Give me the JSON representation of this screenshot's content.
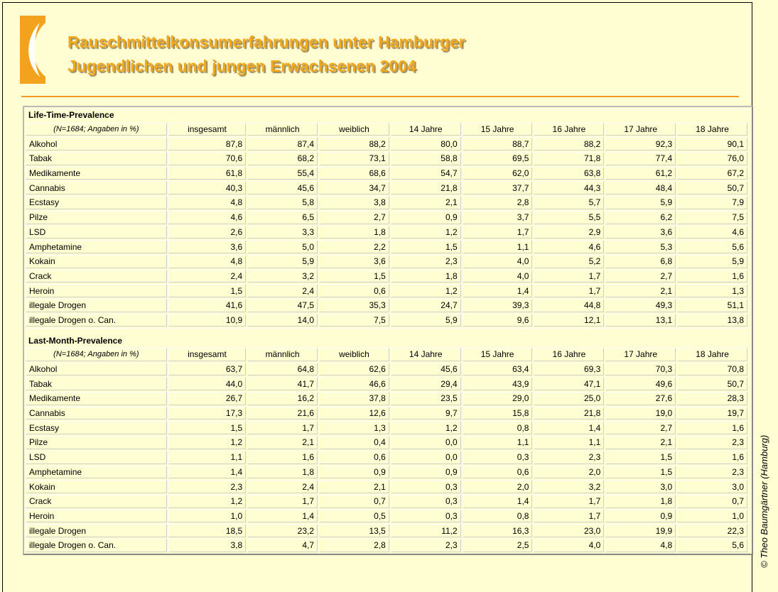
{
  "header": {
    "title_line1": "Rauschmittelkonsumerfahrungen unter Hamburger",
    "title_line2": "Jugendlichen und jungen Erwachsenen 2004"
  },
  "copyright": "© Theo Baumgärtner (Hamburg)",
  "table": {
    "sections": [
      {
        "title": "Life-Time-Prevalence",
        "note": "(N=1684; Angaben in %)",
        "columns": [
          "insgesamt",
          "männlich",
          "weiblich",
          "14 Jahre",
          "15 Jahre",
          "16 Jahre",
          "17 Jahre",
          "18 Jahre"
        ],
        "rows": [
          {
            "label": "Alkohol",
            "values": [
              "87,8",
              "87,4",
              "88,2",
              "80,0",
              "88,7",
              "88,2",
              "92,3",
              "90,1"
            ]
          },
          {
            "label": "Tabak",
            "values": [
              "70,6",
              "68,2",
              "73,1",
              "58,8",
              "69,5",
              "71,8",
              "77,4",
              "76,0"
            ]
          },
          {
            "label": "Medikamente",
            "values": [
              "61,8",
              "55,4",
              "68,6",
              "54,7",
              "62,0",
              "63,8",
              "61,2",
              "67,2"
            ]
          },
          {
            "label": "Cannabis",
            "values": [
              "40,3",
              "45,6",
              "34,7",
              "21,8",
              "37,7",
              "44,3",
              "48,4",
              "50,7"
            ]
          },
          {
            "label": "Ecstasy",
            "values": [
              "4,8",
              "5,8",
              "3,8",
              "2,1",
              "2,8",
              "5,7",
              "5,9",
              "7,9"
            ]
          },
          {
            "label": "Pilze",
            "values": [
              "4,6",
              "6,5",
              "2,7",
              "0,9",
              "3,7",
              "5,5",
              "6,2",
              "7,5"
            ]
          },
          {
            "label": "LSD",
            "values": [
              "2,6",
              "3,3",
              "1,8",
              "1,2",
              "1,7",
              "2,9",
              "3,6",
              "4,6"
            ]
          },
          {
            "label": "Amphetamine",
            "values": [
              "3,6",
              "5,0",
              "2,2",
              "1,5",
              "1,1",
              "4,6",
              "5,3",
              "5,6"
            ]
          },
          {
            "label": "Kokain",
            "values": [
              "4,8",
              "5,9",
              "3,6",
              "2,3",
              "4,0",
              "5,2",
              "6,8",
              "5,9"
            ]
          },
          {
            "label": "Crack",
            "values": [
              "2,4",
              "3,2",
              "1,5",
              "1,8",
              "4,0",
              "1,7",
              "2,7",
              "1,6"
            ]
          },
          {
            "label": "Heroin",
            "values": [
              "1,5",
              "2,4",
              "0,6",
              "1,2",
              "1,4",
              "1,7",
              "2,1",
              "1,3"
            ]
          },
          {
            "label": "illegale Drogen",
            "values": [
              "41,6",
              "47,5",
              "35,3",
              "24,7",
              "39,3",
              "44,8",
              "49,3",
              "51,1"
            ]
          },
          {
            "label": "illegale Drogen o. Can.",
            "values": [
              "10,9",
              "14,0",
              "7,5",
              "5,9",
              "9,6",
              "12,1",
              "13,1",
              "13,8"
            ]
          }
        ]
      },
      {
        "title": "Last-Month-Prevalence",
        "note": "(N=1684; Angaben in %)",
        "columns": [
          "insgesamt",
          "männlich",
          "weiblich",
          "14 Jahre",
          "15 Jahre",
          "16 Jahre",
          "17 Jahre",
          "18 Jahre"
        ],
        "rows": [
          {
            "label": "Alkohol",
            "values": [
              "63,7",
              "64,8",
              "62,6",
              "45,6",
              "63,4",
              "69,3",
              "70,3",
              "70,8"
            ]
          },
          {
            "label": "Tabak",
            "values": [
              "44,0",
              "41,7",
              "46,6",
              "29,4",
              "43,9",
              "47,1",
              "49,6",
              "50,7"
            ]
          },
          {
            "label": "Medikamente",
            "values": [
              "26,7",
              "16,2",
              "37,8",
              "23,5",
              "29,0",
              "25,0",
              "27,6",
              "28,3"
            ]
          },
          {
            "label": "Cannabis",
            "values": [
              "17,3",
              "21,6",
              "12,6",
              "9,7",
              "15,8",
              "21,8",
              "19,0",
              "19,7"
            ]
          },
          {
            "label": "Ecstasy",
            "values": [
              "1,5",
              "1,7",
              "1,3",
              "1,2",
              "0,8",
              "1,4",
              "2,7",
              "1,6"
            ]
          },
          {
            "label": "Pilze",
            "values": [
              "1,2",
              "2,1",
              "0,4",
              "0,0",
              "1,1",
              "1,1",
              "2,1",
              "2,3"
            ]
          },
          {
            "label": "LSD",
            "values": [
              "1,1",
              "1,6",
              "0,6",
              "0,0",
              "0,3",
              "2,3",
              "1,5",
              "1,6"
            ]
          },
          {
            "label": "Amphetamine",
            "values": [
              "1,4",
              "1,8",
              "0,9",
              "0,9",
              "0,6",
              "2,0",
              "1,5",
              "2,3"
            ]
          },
          {
            "label": "Kokain",
            "values": [
              "2,3",
              "2,4",
              "2,1",
              "0,3",
              "2,0",
              "3,2",
              "3,0",
              "3,0"
            ]
          },
          {
            "label": "Crack",
            "values": [
              "1,2",
              "1,7",
              "0,7",
              "0,3",
              "1,4",
              "1,7",
              "1,8",
              "0,7"
            ]
          },
          {
            "label": "Heroin",
            "values": [
              "1,0",
              "1,4",
              "0,5",
              "0,3",
              "0,8",
              "1,7",
              "0,9",
              "1,0"
            ]
          },
          {
            "label": "illegale Drogen",
            "values": [
              "18,5",
              "23,2",
              "13,5",
              "11,2",
              "16,3",
              "23,0",
              "19,9",
              "22,3"
            ]
          },
          {
            "label": "illegale Drogen o. Can.",
            "values": [
              "3,8",
              "4,7",
              "2,8",
              "2,3",
              "2,5",
              "4,0",
              "4,8",
              "5,6"
            ]
          }
        ]
      }
    ]
  }
}
